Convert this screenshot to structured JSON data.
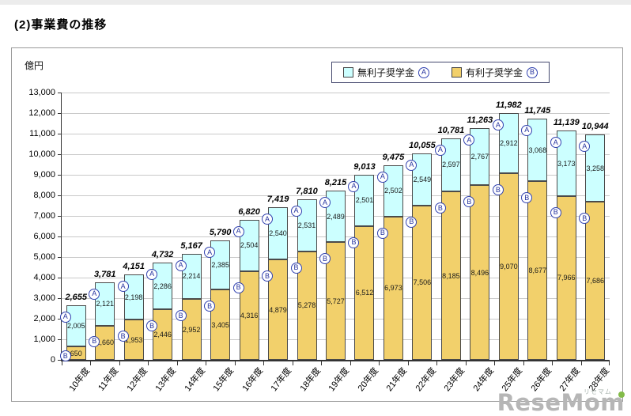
{
  "page": {
    "title": "(2)事業費の推移"
  },
  "chart_data": {
    "type": "bar",
    "stacked": true,
    "title": "",
    "ylabel": "億円",
    "ylim": [
      0,
      13000
    ],
    "ytick_step": 1000,
    "grid": true,
    "legend_position": "top",
    "categories": [
      "10年度",
      "11年度",
      "12年度",
      "13年度",
      "14年度",
      "15年度",
      "16年度",
      "17年度",
      "18年度",
      "19年度",
      "20年度",
      "21年度",
      "22年度",
      "23年度",
      "24年度",
      "25年度",
      "26年度",
      "27年度",
      "28年度"
    ],
    "series": [
      {
        "name": "無利子奨学金",
        "marker": "A",
        "color": "#CCFFFF",
        "values": [
          2005,
          2121,
          2198,
          2286,
          2214,
          2385,
          2504,
          2540,
          2531,
          2489,
          2501,
          2502,
          2549,
          2597,
          2767,
          2912,
          3068,
          3173,
          3258
        ]
      },
      {
        "name": "有利子奨学金",
        "marker": "B",
        "color": "#F2D06B",
        "values": [
          650,
          1660,
          1953,
          2446,
          2952,
          3405,
          4316,
          4879,
          5278,
          5727,
          6512,
          6973,
          7506,
          8185,
          8496,
          9070,
          8677,
          7966,
          7686
        ]
      }
    ],
    "totals": [
      2655,
      3781,
      4151,
      4732,
      5167,
      5790,
      6820,
      7419,
      7810,
      8215,
      9013,
      9475,
      10055,
      10781,
      11263,
      11982,
      11745,
      11139,
      10944
    ]
  },
  "watermark": {
    "text": "ReseMom",
    "caption": "リセマム"
  }
}
